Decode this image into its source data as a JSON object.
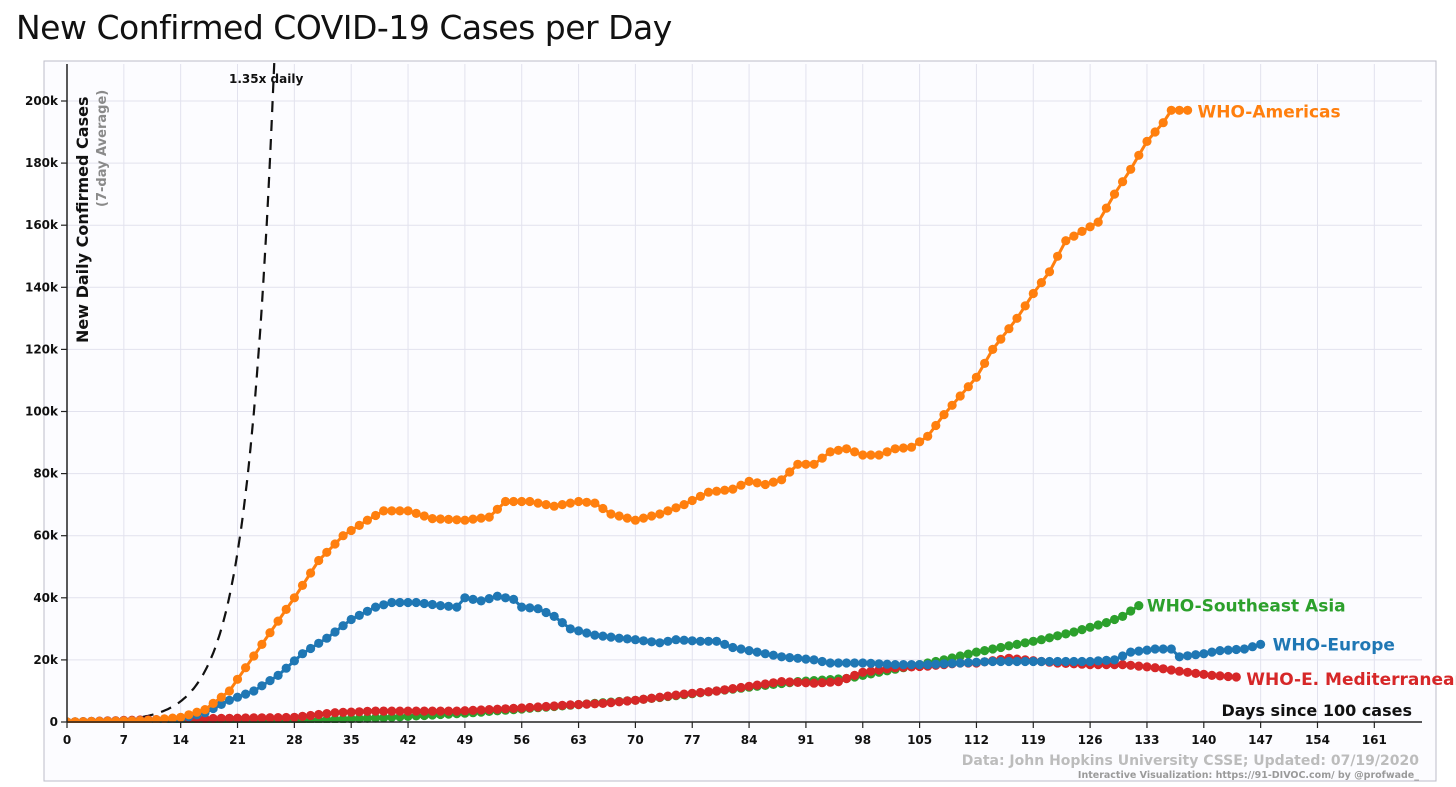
{
  "title": "New Confirmed COVID-19 Cases per Day",
  "chart_data": {
    "type": "line",
    "title": "New Confirmed COVID-19 Cases per Day",
    "ylabel": "New Daily Confirmed Cases",
    "ylabel_sub": "(7-day Average)",
    "xlabel": "Days since 100 cases",
    "xlim": [
      0,
      168
    ],
    "ylim": [
      0,
      208000
    ],
    "x_ticks": [
      0,
      7,
      14,
      21,
      28,
      35,
      42,
      49,
      56,
      63,
      70,
      77,
      84,
      91,
      98,
      105,
      112,
      119,
      126,
      133,
      140,
      147,
      154,
      161
    ],
    "x_tick_labels": [
      "0",
      "7",
      "14",
      "21",
      "28",
      "35",
      "42",
      "49",
      "56",
      "63",
      "70",
      "77",
      "84",
      "91",
      "98",
      "105",
      "112",
      "119",
      "126",
      "133",
      "140",
      "147",
      "154",
      "161"
    ],
    "y_ticks": [
      0,
      20000,
      40000,
      60000,
      80000,
      100000,
      120000,
      140000,
      160000,
      180000,
      200000
    ],
    "y_tick_labels": [
      "0",
      "20k",
      "40k",
      "60k",
      "80k",
      "100k",
      "120k",
      "140k",
      "160k",
      "180k",
      "200k"
    ],
    "grid": true,
    "reference_line": {
      "label": "1.35x daily",
      "growth": 1.35,
      "start_value": 100,
      "style": "dashed"
    },
    "series": [
      {
        "name": "WHO-Americas",
        "color": "#ff7f0e",
        "points": [
          [
            0,
            0
          ],
          [
            10,
            500
          ],
          [
            14,
            1500
          ],
          [
            17,
            4000
          ],
          [
            20,
            10000
          ],
          [
            24,
            25000
          ],
          [
            28,
            40000
          ],
          [
            31,
            52000
          ],
          [
            34,
            60000
          ],
          [
            37,
            65000
          ],
          [
            39,
            68000
          ],
          [
            42,
            68000
          ],
          [
            45,
            65500
          ],
          [
            49,
            65000
          ],
          [
            52,
            66000
          ],
          [
            54,
            71000
          ],
          [
            57,
            71000
          ],
          [
            60,
            69500
          ],
          [
            63,
            71000
          ],
          [
            65,
            70500
          ],
          [
            67,
            67000
          ],
          [
            70,
            65000
          ],
          [
            73,
            67000
          ],
          [
            76,
            70000
          ],
          [
            79,
            74000
          ],
          [
            82,
            75000
          ],
          [
            84,
            77500
          ],
          [
            86,
            76500
          ],
          [
            88,
            78000
          ],
          [
            90,
            83000
          ],
          [
            92,
            83000
          ],
          [
            94,
            87000
          ],
          [
            96,
            88000
          ],
          [
            98,
            86000
          ],
          [
            100,
            86000
          ],
          [
            102,
            88000
          ],
          [
            104,
            88500
          ],
          [
            106,
            92000
          ],
          [
            108,
            99000
          ],
          [
            110,
            105000
          ],
          [
            112,
            111000
          ],
          [
            114,
            120000
          ],
          [
            117,
            130000
          ],
          [
            119,
            138000
          ],
          [
            121,
            145000
          ],
          [
            123,
            155000
          ],
          [
            125,
            158000
          ],
          [
            127,
            161000
          ],
          [
            129,
            170000
          ],
          [
            131,
            178000
          ],
          [
            133,
            187000
          ],
          [
            135,
            193000
          ],
          [
            136,
            197000
          ],
          [
            138,
            197000
          ]
        ]
      },
      {
        "name": "WHO-Europe",
        "color": "#1f77b4",
        "points": [
          [
            0,
            0
          ],
          [
            10,
            500
          ],
          [
            14,
            1000
          ],
          [
            17,
            3000
          ],
          [
            20,
            7000
          ],
          [
            23,
            10000
          ],
          [
            26,
            15000
          ],
          [
            29,
            22000
          ],
          [
            32,
            27000
          ],
          [
            35,
            33000
          ],
          [
            38,
            37000
          ],
          [
            40,
            38500
          ],
          [
            43,
            38500
          ],
          [
            46,
            37500
          ],
          [
            48,
            37000
          ],
          [
            49,
            40000
          ],
          [
            51,
            39000
          ],
          [
            53,
            40500
          ],
          [
            55,
            39500
          ],
          [
            56,
            37000
          ],
          [
            58,
            36500
          ],
          [
            60,
            34000
          ],
          [
            62,
            30000
          ],
          [
            65,
            28000
          ],
          [
            68,
            27000
          ],
          [
            70,
            26500
          ],
          [
            73,
            25500
          ],
          [
            75,
            26500
          ],
          [
            78,
            26000
          ],
          [
            80,
            26000
          ],
          [
            82,
            24000
          ],
          [
            85,
            22500
          ],
          [
            88,
            21000
          ],
          [
            92,
            20000
          ],
          [
            94,
            19000
          ],
          [
            98,
            19000
          ],
          [
            102,
            18500
          ],
          [
            106,
            18500
          ],
          [
            110,
            19000
          ],
          [
            114,
            19500
          ],
          [
            118,
            19500
          ],
          [
            122,
            19500
          ],
          [
            126,
            19500
          ],
          [
            129,
            20000
          ],
          [
            131,
            22500
          ],
          [
            134,
            23500
          ],
          [
            136,
            23500
          ],
          [
            137,
            21000
          ],
          [
            140,
            22000
          ],
          [
            142,
            23000
          ],
          [
            145,
            23500
          ],
          [
            147,
            25000
          ]
        ]
      },
      {
        "name": "WHO-Southeast Asia",
        "color": "#2ca02c",
        "points": [
          [
            0,
            0
          ],
          [
            20,
            300
          ],
          [
            30,
            500
          ],
          [
            40,
            1500
          ],
          [
            50,
            3000
          ],
          [
            60,
            5000
          ],
          [
            70,
            7000
          ],
          [
            80,
            10000
          ],
          [
            90,
            13000
          ],
          [
            96,
            14000
          ],
          [
            100,
            16000
          ],
          [
            104,
            18000
          ],
          [
            108,
            20000
          ],
          [
            112,
            22500
          ],
          [
            116,
            24500
          ],
          [
            120,
            26500
          ],
          [
            124,
            29000
          ],
          [
            128,
            32000
          ],
          [
            130,
            34000
          ],
          [
            132,
            37500
          ]
        ]
      },
      {
        "name": "WHO-E. Mediterranean",
        "color": "#d62728",
        "points": [
          [
            0,
            0
          ],
          [
            14,
            1000
          ],
          [
            20,
            1200
          ],
          [
            28,
            1500
          ],
          [
            33,
            3000
          ],
          [
            38,
            3500
          ],
          [
            42,
            3500
          ],
          [
            48,
            3500
          ],
          [
            52,
            4000
          ],
          [
            56,
            4500
          ],
          [
            62,
            5500
          ],
          [
            66,
            6000
          ],
          [
            70,
            7000
          ],
          [
            76,
            9000
          ],
          [
            80,
            10000
          ],
          [
            84,
            11500
          ],
          [
            88,
            13000
          ],
          [
            92,
            12500
          ],
          [
            95,
            13000
          ],
          [
            98,
            16000
          ],
          [
            102,
            17500
          ],
          [
            106,
            18000
          ],
          [
            110,
            19000
          ],
          [
            112,
            19000
          ],
          [
            116,
            20500
          ],
          [
            118,
            20000
          ],
          [
            122,
            19000
          ],
          [
            126,
            18500
          ],
          [
            130,
            18500
          ],
          [
            134,
            17500
          ],
          [
            138,
            16000
          ],
          [
            141,
            15000
          ],
          [
            144,
            14500
          ]
        ]
      }
    ],
    "source_note": "Data: John Hopkins University CSSE; Updated: 07/19/2020",
    "credit_note": "Interactive Visualization: https://91-DIVOC.com/ by @profwade_"
  }
}
